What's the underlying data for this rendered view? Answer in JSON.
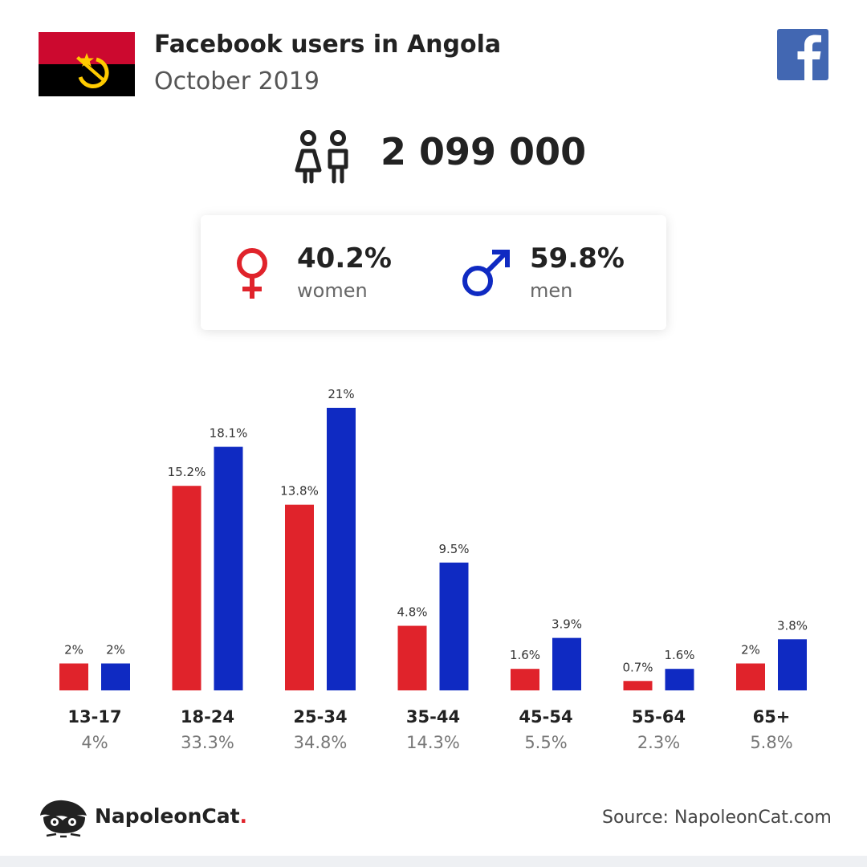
{
  "header": {
    "title": "Facebook users in Angola",
    "subtitle": "October 2019"
  },
  "icons": {
    "flag": "angola-flag-icon",
    "social": "facebook-logo-icon",
    "people": "people-icon",
    "female": "venus-icon",
    "male": "mars-icon",
    "brand": "napoleoncat-logo-icon"
  },
  "colors": {
    "women": "#e0232b",
    "men": "#0f2ac2",
    "facebook": "#4267b2",
    "flag_red": "#cc092f",
    "flag_black": "#000000",
    "flag_yellow": "#ffcb00"
  },
  "total_users": "2 099 000",
  "gender": {
    "women": {
      "percent": "40.2%",
      "label": "women"
    },
    "men": {
      "percent": "59.8%",
      "label": "men"
    }
  },
  "chart_data": {
    "type": "bar",
    "categories": [
      "13-17",
      "18-24",
      "25-34",
      "35-44",
      "45-54",
      "55-64",
      "65+"
    ],
    "category_totals": [
      "4%",
      "33.3%",
      "34.8%",
      "14.3%",
      "5.5%",
      "2.3%",
      "5.8%"
    ],
    "series": [
      {
        "name": "women",
        "values": [
          2,
          15.2,
          13.8,
          4.8,
          1.6,
          0.7,
          2
        ],
        "labels": [
          "2%",
          "15.2%",
          "13.8%",
          "4.8%",
          "1.6%",
          "0.7%",
          "2%"
        ]
      },
      {
        "name": "men",
        "values": [
          2,
          18.1,
          21,
          9.5,
          3.9,
          1.6,
          3.8
        ],
        "labels": [
          "2%",
          "18.1%",
          "21%",
          "9.5%",
          "3.9%",
          "1.6%",
          "3.8%"
        ]
      }
    ],
    "ylim": [
      0,
      21
    ],
    "grid": false,
    "legend": "none"
  },
  "footer": {
    "brand_name": "NapoleonCat",
    "brand_dot": ".",
    "source": "Source: NapoleonCat.com"
  }
}
